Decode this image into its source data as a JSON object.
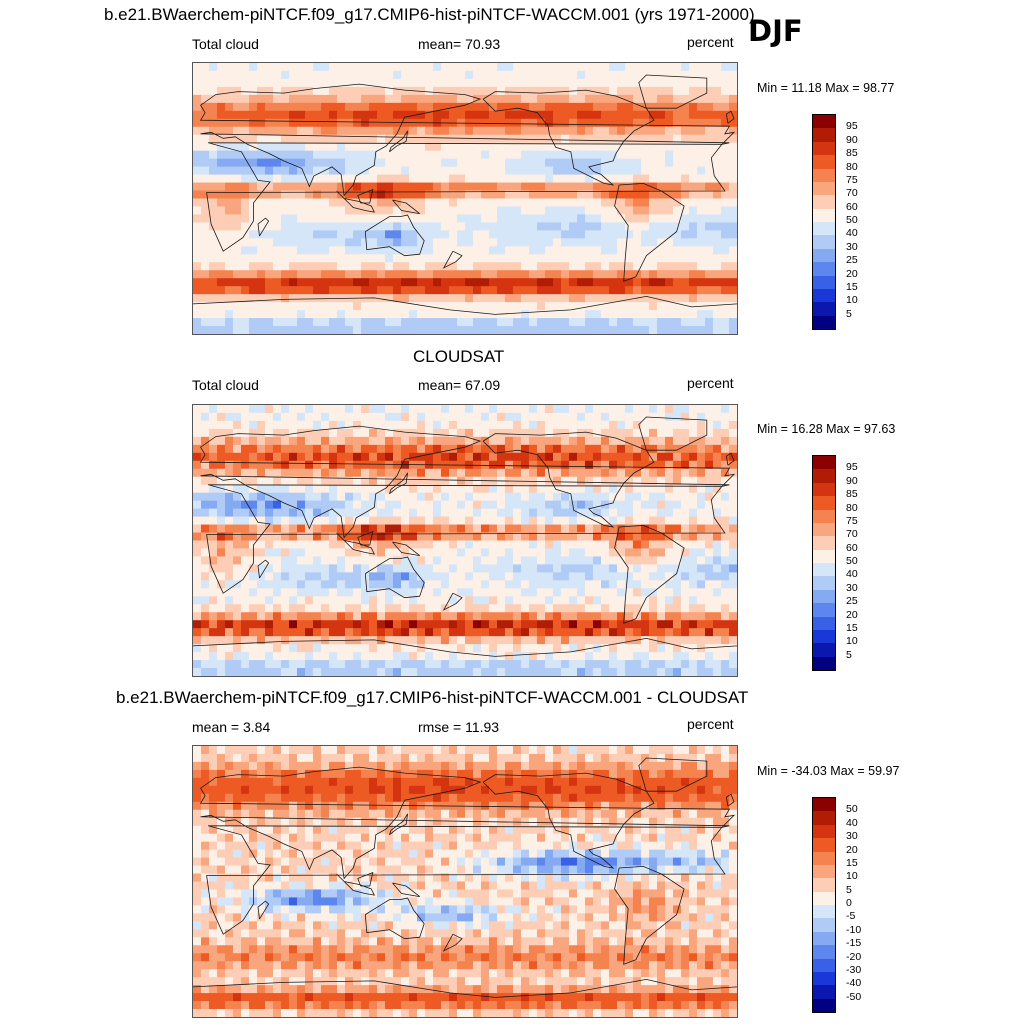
{
  "header": {
    "title": "b.e21.BWaerchem-piNTCF.f09_g17.CMIP6-hist-piNTCF-WACCM.001 (yrs 1971-2000)",
    "season": "DJF"
  },
  "panels": [
    {
      "section_title": "",
      "left_label": "Total cloud",
      "center_label": "mean=  70.93",
      "units": "percent",
      "minmax": "Min =  11.18 Max =  98.77",
      "scale": "abs",
      "colorbar_labels": [
        "95",
        "90",
        "85",
        "80",
        "75",
        "70",
        "60",
        "50",
        "40",
        "30",
        "25",
        "20",
        "15",
        "10",
        "5"
      ]
    },
    {
      "section_title": "CLOUDSAT",
      "left_label": "Total cloud",
      "center_label": "mean=  67.09",
      "units": "percent",
      "minmax": "Min =  16.28 Max =  97.63",
      "scale": "abs",
      "colorbar_labels": [
        "95",
        "90",
        "85",
        "80",
        "75",
        "70",
        "60",
        "50",
        "40",
        "30",
        "25",
        "20",
        "15",
        "10",
        "5"
      ]
    },
    {
      "section_title": "b.e21.BWaerchem-piNTCF.f09_g17.CMIP6-hist-piNTCF-WACCM.001 - CLOUDSAT",
      "left_label": "mean =   3.84",
      "center_label": "rmse =  11.93",
      "units": "percent",
      "minmax": "Min = -34.03 Max =  59.97",
      "scale": "diff",
      "colorbar_labels": [
        "50",
        "40",
        "30",
        "20",
        "15",
        "10",
        "5",
        "0",
        "-5",
        "-10",
        "-15",
        "-20",
        "-30",
        "-40",
        "-50"
      ]
    }
  ],
  "colors": {
    "palette": [
      "#8b0000",
      "#b01c05",
      "#d43410",
      "#ee5a24",
      "#f5834f",
      "#f9a67e",
      "#fdcdb5",
      "#fdf0e6",
      "#d6e6f9",
      "#b0cbf5",
      "#86aaf1",
      "#5d86ee",
      "#3861e7",
      "#1a38d8",
      "#0a18b0",
      "#000080"
    ],
    "coast": "#1a1a1a"
  }
}
